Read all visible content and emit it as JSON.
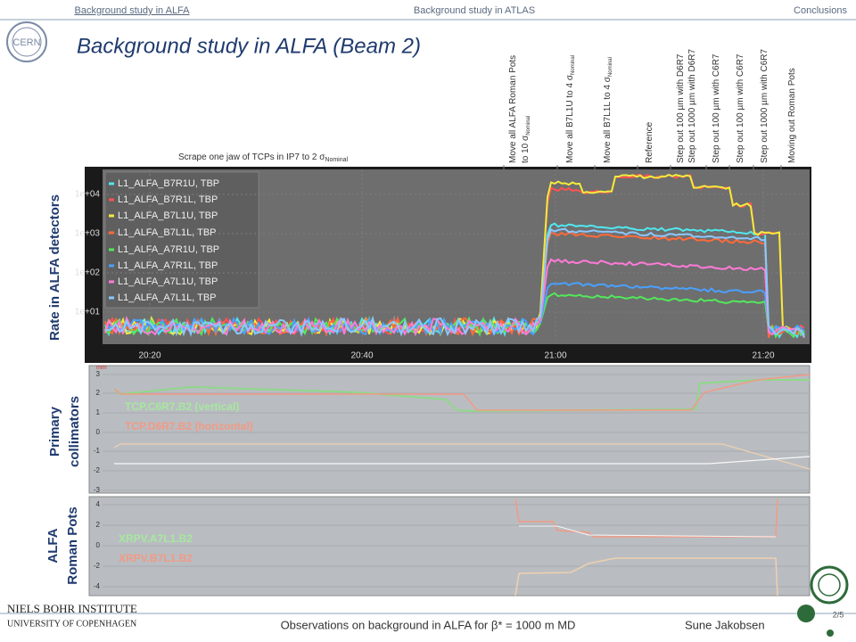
{
  "nav": [
    "Background study in ALFA",
    "Background study in ATLAS",
    "Conclusions"
  ],
  "logo": "CERN",
  "title": "Background study in ALFA (Beam 2)",
  "scrape_label": {
    "text": "Scrape one jaw of TCPs in IP7 to 2 σ",
    "sub": "Nominal"
  },
  "step_labels": [
    {
      "lines": [
        {
          "text": "Move all ALFA Roman Pots"
        },
        {
          "text": "to 10 σ",
          "sub": "Nominal"
        }
      ]
    },
    {
      "lines": [
        {
          "text": "Move all B7L1U to 4 σ",
          "sub": "Nominal"
        }
      ]
    },
    {
      "lines": [
        {
          "text": "Move all B7L1L to 4 σ",
          "sub": "Nominal"
        }
      ]
    },
    {
      "lines": [
        {
          "text": "Reference"
        }
      ]
    },
    {
      "lines": [
        {
          "text": "Step out 100 µm with D6R7"
        },
        {
          "text": "Step out 1000 µm with D6R7"
        }
      ]
    },
    {
      "lines": [
        {
          "text": "Step out 100 µm with C6R7"
        }
      ]
    },
    {
      "lines": [
        {
          "text": "Step out 100 µm with C6R7"
        }
      ]
    },
    {
      "lines": [
        {
          "text": "Step out 1000 µm with C6R7"
        }
      ]
    },
    {
      "lines": [
        {
          "text": "Moving out Roman Pots"
        }
      ]
    }
  ],
  "rate_panel": {
    "side_label": "Rate in ALFA detectors",
    "legend": [
      "L1_ALFA_B7R1U, TBP",
      "L1_ALFA_B7R1L, TBP",
      "L1_ALFA_B7L1U, TBP",
      "L1_ALFA_B7L1L, TBP",
      "L1_ALFA_A7R1U, TBP",
      "L1_ALFA_A7R1L, TBP",
      "L1_ALFA_A7L1U, TBP",
      "L1_ALFA_A7L1L, TBP"
    ],
    "yticks": [
      "1e+04",
      "1e+03",
      "1e+02",
      "1e+01"
    ],
    "xticks": [
      "20:20",
      "20:40",
      "21:00",
      "21:20"
    ]
  },
  "collimator_panel": {
    "side_label": [
      "Primary",
      "collimators"
    ],
    "unit": "mm",
    "yticks": [
      "3",
      "2",
      "1",
      "0",
      "-1",
      "-2",
      "-3"
    ],
    "labels": [
      "TCP.C6R7.B2 (vertical)",
      "TCP.D6R7.B2 (horizontal)"
    ]
  },
  "pots_panel": {
    "side_label": [
      "ALFA",
      "Roman Pots"
    ],
    "yticks": [
      "4",
      "2",
      "0",
      "-2",
      "-4"
    ],
    "labels": [
      "XRPV.A7L1.B2",
      "XRPV.B7L1.B2"
    ]
  },
  "footer": {
    "institute": "NIELS BOHR INSTITUTE",
    "university": "UNIVERSITY OF COPENHAGEN",
    "center": "Observations on background in ALFA for β* = 1000 m MD",
    "author": "Sune Jakobsen",
    "page": "2/5"
  }
}
